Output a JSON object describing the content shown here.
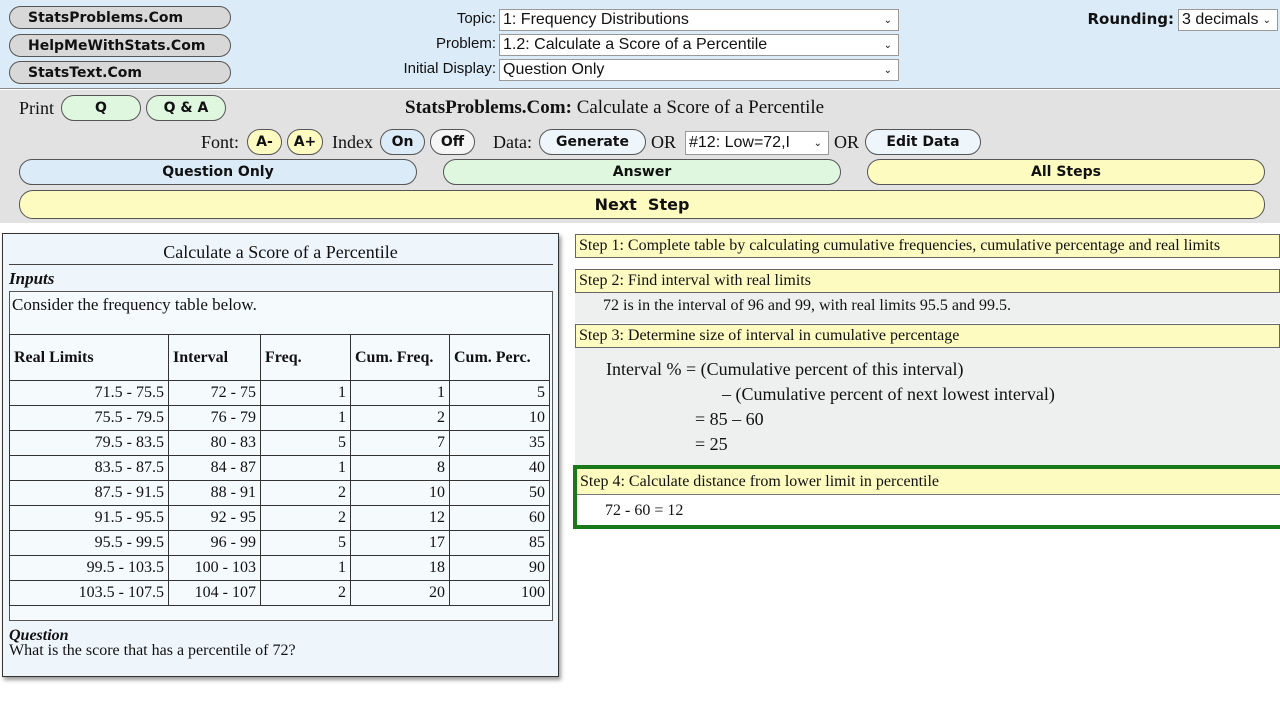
{
  "header": {
    "sites": [
      "StatsProblems.Com",
      "HelpMeWithStats.Com",
      "StatsText.Com"
    ],
    "topic_label": "Topic:",
    "topic_value": "1: Frequency Distributions",
    "problem_label": "Problem:",
    "problem_value": "1.2: Calculate a Score of a Percentile",
    "display_label": "Initial Display:",
    "display_value": "Question Only",
    "rounding_label": "Rounding:",
    "rounding_value": "3 decimals"
  },
  "toolbar": {
    "print_label": "Print",
    "q": "Q",
    "qa": "Q & A",
    "title_brand": "StatsProblems.Com:",
    "title_text": " Calculate a Score of a Percentile",
    "font_label": "Font:",
    "font_minus": "A-",
    "font_plus": "A+",
    "index_label": "Index",
    "index_on": "On",
    "index_off": "Off",
    "data_label": "Data:",
    "generate": "Generate",
    "or1": "OR",
    "dataset_value": "#12: Low=72,I",
    "or2": "OR",
    "edit_data": "Edit Data",
    "question_only": "Question Only",
    "answer": "Answer",
    "all_steps": "All Steps",
    "next_step": "Next  Step"
  },
  "problem": {
    "title": "Calculate a Score of a Percentile",
    "inputs_label": "Inputs",
    "intro": "Consider the frequency table below.",
    "columns": [
      "Real Limits",
      "Interval",
      "Freq.",
      "Cum. Freq.",
      "Cum. Perc."
    ],
    "rows": [
      [
        "71.5 - 75.5",
        "72 - 75",
        "1",
        "1",
        "5"
      ],
      [
        "75.5 - 79.5",
        "76 - 79",
        "1",
        "2",
        "10"
      ],
      [
        "79.5 - 83.5",
        "80 - 83",
        "5",
        "7",
        "35"
      ],
      [
        "83.5 - 87.5",
        "84 - 87",
        "1",
        "8",
        "40"
      ],
      [
        "87.5 - 91.5",
        "88 - 91",
        "2",
        "10",
        "50"
      ],
      [
        "91.5 - 95.5",
        "92 - 95",
        "2",
        "12",
        "60"
      ],
      [
        "95.5 - 99.5",
        "96 - 99",
        "5",
        "17",
        "85"
      ],
      [
        "99.5 - 103.5",
        "100 - 103",
        "1",
        "18",
        "90"
      ],
      [
        "103.5 - 107.5",
        "104 - 107",
        "2",
        "20",
        "100"
      ]
    ],
    "question_label": "Question",
    "question": "What is the score that has a percentile of 72?"
  },
  "steps": {
    "s1": "Step 1: Complete table by calculating cumulative frequencies, cumulative percentage and real limits",
    "s2": "Step 2: Find interval with real limits",
    "s2_body": "72 is in the interval of 96 and 99, with real limits 95.5 and 99.5.",
    "s3": "Step 3: Determine size of interval in cumulative percentage",
    "s3_l1": "Interval % = (Cumulative percent of this interval)",
    "s3_l2": "– (Cumulative percent of next lowest interval)",
    "s3_l3": "= 85 – 60",
    "s3_l4": "= 25",
    "s4": "Step 4: Calculate distance from lower limit in percentile",
    "s4_body": "72 - 60 = 12"
  },
  "colors": {
    "yellow": "#fdfbc0",
    "green_btn": "#dff7df",
    "blue_btn": "#dcebf8",
    "active_border": "#1a7a1a"
  }
}
